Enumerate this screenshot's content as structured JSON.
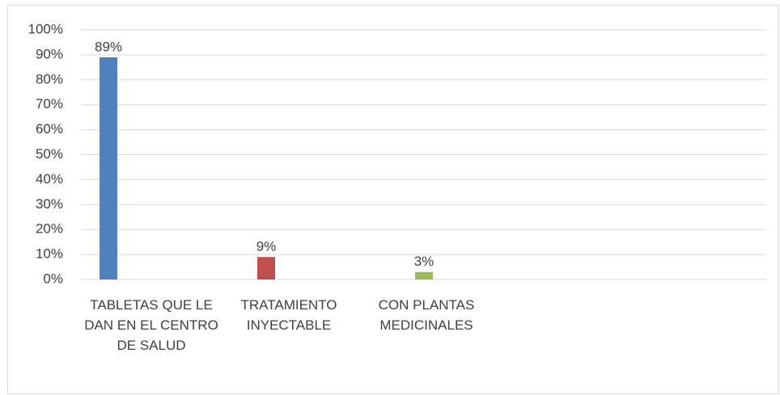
{
  "chart_data": {
    "type": "bar",
    "categories": [
      "TABLETAS  QUE LE DAN EN EL CENTRO DE SALUD",
      "TRATAMIENTO INYECTABLE",
      "CON PLANTAS MEDICINALES"
    ],
    "values": [
      89,
      9,
      3
    ],
    "value_labels": [
      "89%",
      "9%",
      "3%"
    ],
    "colors": [
      "#4f81bd",
      "#c0504d",
      "#9bbb59"
    ],
    "ylim": [
      0,
      100
    ],
    "yticks": [
      {
        "value": 0,
        "label": "0%"
      },
      {
        "value": 10,
        "label": "10%"
      },
      {
        "value": 20,
        "label": "20%"
      },
      {
        "value": 30,
        "label": "30%"
      },
      {
        "value": 40,
        "label": "40%"
      },
      {
        "value": 50,
        "label": "50%"
      },
      {
        "value": 60,
        "label": "60%"
      },
      {
        "value": 70,
        "label": "70%"
      },
      {
        "value": 80,
        "label": "80%"
      },
      {
        "value": 90,
        "label": "90%"
      },
      {
        "value": 100,
        "label": "100%"
      }
    ],
    "grid": true
  }
}
